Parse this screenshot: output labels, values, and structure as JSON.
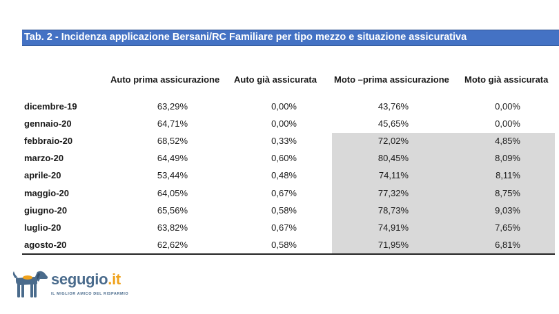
{
  "table": {
    "title": "Tab. 2 - Incidenza applicazione Bersani/RC Familiare per tipo mezzo e situazione assicurativa",
    "headers": [
      "Auto prima  assicurazione",
      "Auto già assicurata",
      "Moto –prima assicurazione",
      "Moto già  assicurata"
    ],
    "rows": [
      {
        "label": "dicembre-19",
        "values": [
          "63,29%",
          "0,00%",
          "43,76%",
          "0,00%"
        ]
      },
      {
        "label": "gennaio-20",
        "values": [
          "64,71%",
          "0,00%",
          "45,65%",
          "0,00%"
        ]
      },
      {
        "label": "febbraio-20",
        "values": [
          "68,52%",
          "0,33%",
          "72,02%",
          "4,85%"
        ]
      },
      {
        "label": "marzo-20",
        "values": [
          "64,49%",
          "0,60%",
          "80,45%",
          "8,09%"
        ]
      },
      {
        "label": "aprile-20",
        "values": [
          "53,44%",
          "0,48%",
          "74,11%",
          "8,11%"
        ]
      },
      {
        "label": "maggio-20",
        "values": [
          "64,05%",
          "0,67%",
          "77,32%",
          "8,75%"
        ]
      },
      {
        "label": "giugno-20",
        "values": [
          "65,56%",
          "0,58%",
          "78,73%",
          "9,03%"
        ]
      },
      {
        "label": "luglio-20",
        "values": [
          "63,82%",
          "0,67%",
          "74,91%",
          "7,65%"
        ]
      },
      {
        "label": "agosto-20",
        "values": [
          "62,62%",
          "0,58%",
          "71,95%",
          "6,81%"
        ]
      }
    ],
    "title_color": "#4472c4",
    "highlight_color": "#d9d9d9"
  },
  "logo": {
    "name_main": "segugio",
    "name_dot": ".",
    "name_tld": "it",
    "tagline": "IL MIGLIOR AMICO DEL RISPARMIO",
    "icon": "dog-icon",
    "brand_color": "#4a6b8c",
    "accent_color": "#f0a21c"
  }
}
